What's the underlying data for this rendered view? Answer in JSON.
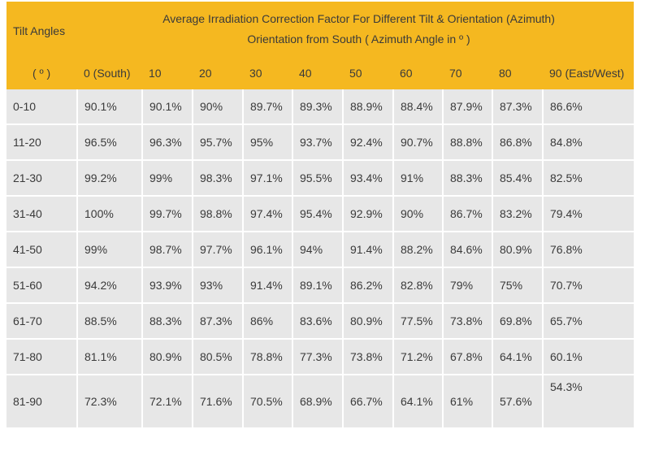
{
  "header": {
    "tilt_label": "Tilt Angles",
    "title_line1": "Average Irradiation Correction Factor For Different Tilt & Orientation (Azimuth)",
    "title_line2": "Orientation from South ( Azimuth Angle in º )",
    "degree_label": "( º )",
    "columns": [
      "0 (South)",
      "10",
      "20",
      "30",
      "40",
      "50",
      "60",
      "70",
      "80",
      "90 (East/West)"
    ]
  },
  "rows": [
    {
      "tilt": "0-10",
      "values": [
        "90.1%",
        "90.1%",
        "90%",
        "89.7%",
        "89.3%",
        "88.9%",
        "88.4%",
        "87.9%",
        "87.3%",
        "86.6%"
      ]
    },
    {
      "tilt": "11-20",
      "values": [
        "96.5%",
        "96.3%",
        "95.7%",
        "95%",
        "93.7%",
        "92.4%",
        "90.7%",
        "88.8%",
        "86.8%",
        "84.8%"
      ]
    },
    {
      "tilt": "21-30",
      "values": [
        "99.2%",
        "99%",
        "98.3%",
        "97.1%",
        "95.5%",
        "93.4%",
        "91%",
        "88.3%",
        "85.4%",
        "82.5%"
      ]
    },
    {
      "tilt": "31-40",
      "values": [
        "100%",
        "99.7%",
        "98.8%",
        "97.4%",
        "95.4%",
        "92.9%",
        "90%",
        "86.7%",
        "83.2%",
        "79.4%"
      ]
    },
    {
      "tilt": "41-50",
      "values": [
        "99%",
        "98.7%",
        "97.7%",
        "96.1%",
        "94%",
        "91.4%",
        "88.2%",
        "84.6%",
        "80.9%",
        "76.8%"
      ]
    },
    {
      "tilt": "51-60",
      "values": [
        "94.2%",
        "93.9%",
        "93%",
        "91.4%",
        "89.1%",
        "86.2%",
        "82.8%",
        "79%",
        "75%",
        "70.7%"
      ]
    },
    {
      "tilt": "61-70",
      "values": [
        "88.5%",
        "88.3%",
        "87.3%",
        "86%",
        "83.6%",
        "80.9%",
        "77.5%",
        "73.8%",
        "69.8%",
        "65.7%"
      ]
    },
    {
      "tilt": "71-80",
      "values": [
        "81.1%",
        "80.9%",
        "80.5%",
        "78.8%",
        "77.3%",
        "73.8%",
        "71.2%",
        "67.8%",
        "64.1%",
        "60.1%"
      ]
    },
    {
      "tilt": "81-90",
      "values": [
        "72.3%",
        "72.1%",
        "71.6%",
        "70.5%",
        "68.9%",
        "66.7%",
        "64.1%",
        "61%",
        "57.6%",
        "54.3%"
      ]
    }
  ],
  "colors": {
    "header_bg": "#f5b820",
    "row_bg": "#e7e7e7",
    "text": "#3a3a3a"
  }
}
